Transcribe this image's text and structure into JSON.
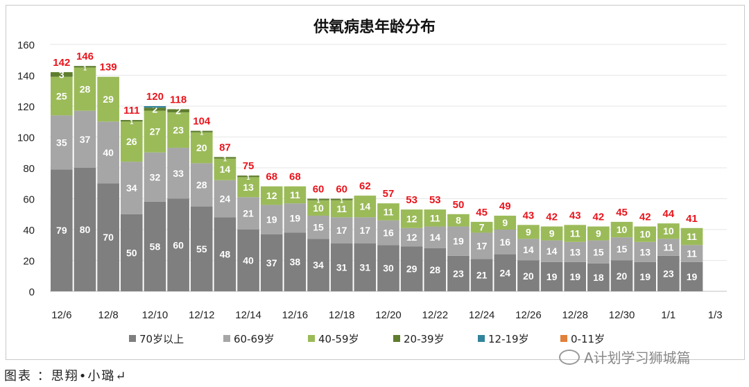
{
  "chart_data": {
    "type": "bar",
    "stacked": true,
    "title": "供氧病患年龄分布",
    "categories": [
      "12/6",
      "12/7",
      "12/8",
      "12/9",
      "12/10",
      "12/11",
      "12/12",
      "12/13",
      "12/14",
      "12/15",
      "12/16",
      "12/17",
      "12/18",
      "12/19",
      "12/20",
      "12/21",
      "12/22",
      "12/23",
      "12/24",
      "12/25",
      "12/26",
      "12/27",
      "12/28",
      "12/29",
      "12/30",
      "12/31",
      "1/1",
      "1/2"
    ],
    "x_tick_labels": [
      "12/6",
      "12/8",
      "12/10",
      "12/12",
      "12/14",
      "12/16",
      "12/18",
      "12/20",
      "12/22",
      "12/24",
      "12/26",
      "12/28",
      "12/30",
      "1/1",
      "1/3"
    ],
    "ylim": [
      0,
      160
    ],
    "y_ticks": [
      0,
      20,
      40,
      60,
      80,
      100,
      120,
      140,
      160
    ],
    "grid": true,
    "legend_position": "bottom",
    "series": [
      {
        "name": "70岁以上",
        "color": "#7f7f7f",
        "values": [
          79,
          80,
          70,
          50,
          58,
          60,
          55,
          48,
          40,
          37,
          38,
          34,
          31,
          31,
          30,
          29,
          28,
          23,
          21,
          24,
          20,
          19,
          19,
          18,
          20,
          19,
          23,
          19
        ]
      },
      {
        "name": "60-69岁",
        "color": "#a6a6a6",
        "values": [
          35,
          37,
          40,
          34,
          32,
          33,
          28,
          24,
          21,
          19,
          19,
          15,
          17,
          17,
          16,
          12,
          14,
          19,
          17,
          16,
          14,
          14,
          13,
          15,
          15,
          13,
          11,
          11
        ]
      },
      {
        "name": "40-59岁",
        "color": "#9bbb59",
        "values": [
          25,
          28,
          29,
          26,
          27,
          23,
          20,
          14,
          13,
          12,
          11,
          10,
          11,
          14,
          11,
          12,
          11,
          8,
          7,
          9,
          9,
          9,
          11,
          9,
          10,
          10,
          10,
          11
        ]
      },
      {
        "name": "20-39岁",
        "color": "#5e7d2e",
        "values": [
          3,
          1,
          0,
          1,
          2,
          2,
          1,
          1,
          1,
          0,
          0,
          1,
          1,
          0,
          0,
          0,
          0,
          0,
          0,
          0,
          0,
          0,
          0,
          0,
          0,
          0,
          0,
          0
        ]
      },
      {
        "name": "12-19岁",
        "color": "#31849b",
        "values": [
          0,
          0,
          0,
          0,
          1,
          0,
          0,
          0,
          0,
          0,
          0,
          0,
          0,
          0,
          0,
          0,
          0,
          0,
          0,
          0,
          0,
          0,
          0,
          0,
          0,
          0,
          0,
          0
        ]
      },
      {
        "name": "0-11岁",
        "color": "#e0803a",
        "values": [
          0,
          0,
          0,
          0,
          0,
          0,
          0,
          0,
          0,
          0,
          0,
          0,
          0,
          0,
          0,
          0,
          0,
          0,
          0,
          0,
          0,
          0,
          0,
          0,
          0,
          0,
          0,
          0
        ]
      }
    ],
    "totals": [
      142,
      146,
      139,
      111,
      120,
      118,
      104,
      87,
      75,
      68,
      68,
      60,
      60,
      62,
      57,
      53,
      53,
      50,
      45,
      49,
      43,
      42,
      43,
      42,
      45,
      42,
      44,
      41
    ],
    "total_label_color": "#e8141c"
  },
  "footer": "图表 ：思翔•小璐↵",
  "watermark": "A计划学习狮城篇"
}
